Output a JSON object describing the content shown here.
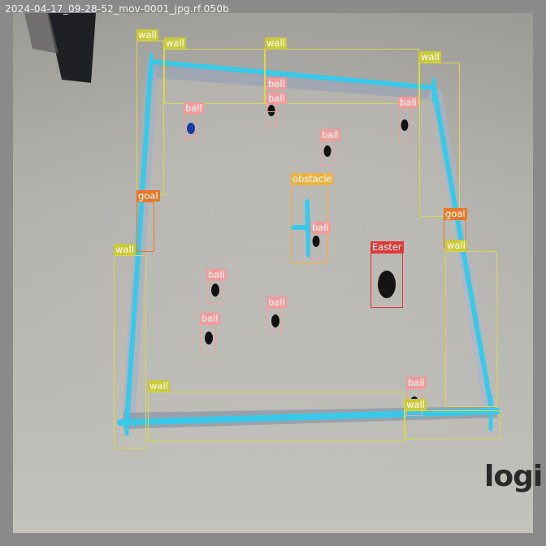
{
  "frame_title": "2024-04-17_09-28-52_mov-0001_jpg.rf.050b",
  "logo_text": "logi",
  "colors": {
    "wall": "#d8d84a",
    "wall_label_bg": "#c9c93a",
    "ball": "#f0a0a0",
    "ball_label_bg": "#f29a9a",
    "goal": "#e8782a",
    "obstacle": "#f0b040",
    "easter": "#e03838",
    "arena_line": "#39c9e8"
  },
  "detections": [
    {
      "cls": "wall",
      "label": "wall"
    },
    {
      "cls": "wall",
      "label": "wall"
    },
    {
      "cls": "wall",
      "label": "wall"
    },
    {
      "cls": "wall",
      "label": "wall"
    },
    {
      "cls": "ball",
      "label": "ball"
    },
    {
      "cls": "ball",
      "label": "ball"
    },
    {
      "cls": "ball",
      "label": "ball"
    },
    {
      "cls": "ball",
      "label": "ball"
    },
    {
      "cls": "ball",
      "label": "ball"
    },
    {
      "cls": "obstacle",
      "label": "obstacle"
    },
    {
      "cls": "goal",
      "label": "goal"
    },
    {
      "cls": "goal",
      "label": "goal"
    },
    {
      "cls": "wall",
      "label": "wall"
    },
    {
      "cls": "ball",
      "label": "ball"
    },
    {
      "cls": "easter",
      "label": "Easter"
    },
    {
      "cls": "wall",
      "label": "wall"
    },
    {
      "cls": "ball",
      "label": "ball"
    },
    {
      "cls": "ball",
      "label": "ball"
    },
    {
      "cls": "ball",
      "label": "ball"
    },
    {
      "cls": "ball",
      "label": "ball"
    },
    {
      "cls": "wall",
      "label": "wall"
    },
    {
      "cls": "wall",
      "label": "wall"
    }
  ]
}
